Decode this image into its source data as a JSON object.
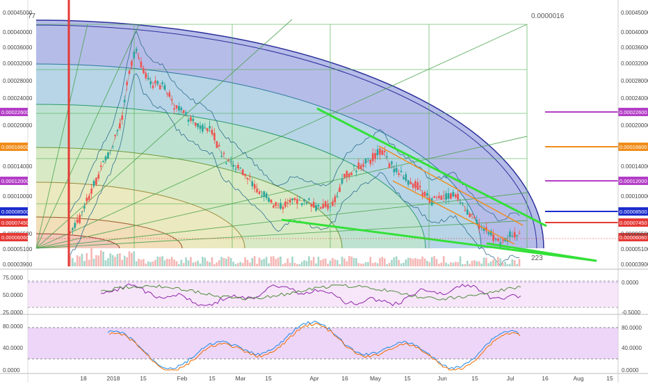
{
  "chart_data": [
    {
      "type": "candlestick",
      "ylim": [
        3.9e-05,
        0.00045
      ],
      "xlim": [
        "2017-12-05",
        "2018-08-18"
      ],
      "y_ticks": [
        "0.00045000",
        "0.00040000",
        "0.00036000",
        "0.00032000",
        "0.00028000",
        "0.00024000",
        "0.00020000",
        "0.00014000",
        "0.00010000",
        "0.00006500",
        "0.00005100",
        "0.00003900"
      ],
      "x_ticks": [
        "18",
        "2018",
        "15",
        "Feb",
        "15",
        "Mar",
        "15",
        "Apr",
        "16",
        "May",
        "15",
        "Jun",
        "15",
        "Jul",
        "16",
        "Aug",
        "15"
      ],
      "top_left_label": "77",
      "top_right_label": "0.0000016",
      "bottom_label": "223",
      "current_price_label": "0.00006060",
      "left_price_badges": [
        "0.00022600",
        "0.00016600",
        "0.00012000",
        "0.00008500",
        "0.00007450",
        "0.00006060"
      ],
      "right_levels": [
        {
          "value": "0.00022600",
          "color": "#b33dc6"
        },
        {
          "value": "0.00016600",
          "color": "#f08c1a"
        },
        {
          "value": "0.00012000",
          "color": "#b33dc6"
        },
        {
          "value": "0.00008500",
          "color": "#1a2ccc"
        },
        {
          "value": "0.00007450",
          "color": "#e53935"
        },
        {
          "value": "0.00006060",
          "color": "#e53935"
        }
      ],
      "colors": {
        "up": "#26a69a",
        "down": "#ef5350",
        "trendline": "#33e038",
        "channel": "#f08c1a"
      }
    },
    {
      "type": "line",
      "name_hint": "rsi panel",
      "ylim": [
        20,
        80
      ],
      "left_ticks": [
        "75.0000",
        "50.0000",
        "25.0000"
      ],
      "right_ticks": [
        "0.0000",
        "-0.5000"
      ]
    },
    {
      "type": "line",
      "name_hint": "stochastic panel",
      "ylim": [
        0,
        100
      ],
      "left_ticks": [
        "80.0000",
        "40.0000",
        "0.0000"
      ],
      "right_ticks": [
        "80.0000",
        "40.0000",
        "0.0000"
      ]
    }
  ]
}
